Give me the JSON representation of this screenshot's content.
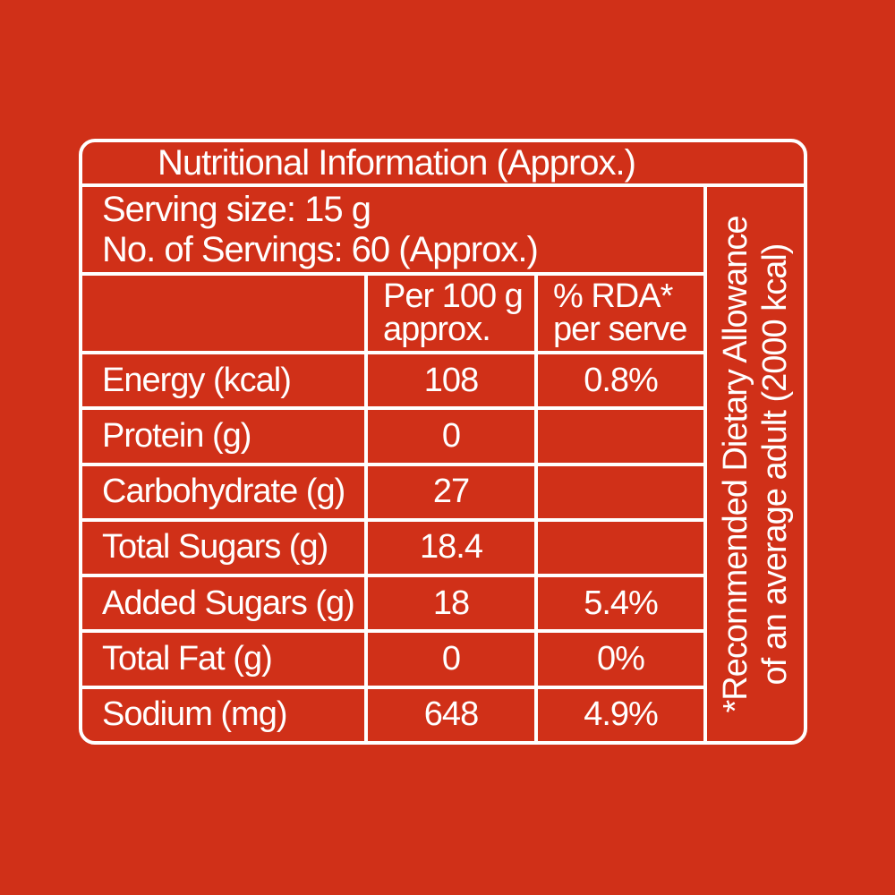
{
  "colors": {
    "background": "#d03018",
    "lines_and_text": "#ffffff"
  },
  "table": {
    "title": "Nutritional Information (Approx.)",
    "serving": {
      "line1": "Serving size: 15 g",
      "line2": "No. of Servings: 60 (Approx.)"
    },
    "headers": {
      "nutrient": "",
      "per100_line1": "Per 100 g",
      "per100_line2": "approx.",
      "rda_line1": "% RDA*",
      "rda_line2": "per serve"
    },
    "rows": [
      {
        "label": "Energy (kcal)",
        "per100": "108",
        "rda": "0.8%"
      },
      {
        "label": "Protein (g)",
        "per100": "0",
        "rda": ""
      },
      {
        "label": "Carbohydrate (g)",
        "per100": "27",
        "rda": ""
      },
      {
        "label": "Total Sugars (g)",
        "per100": "18.4",
        "rda": ""
      },
      {
        "label": "Added Sugars (g)",
        "per100": "18",
        "rda": "5.4%"
      },
      {
        "label": "Total Fat (g)",
        "per100": "0",
        "rda": "0%"
      },
      {
        "label": "Sodium (mg)",
        "per100": "648",
        "rda": "4.9%"
      }
    ],
    "footnote": {
      "line1": "*Recommended Dietary Allowance",
      "line2": "of an average adult (2000 kcal)"
    }
  }
}
